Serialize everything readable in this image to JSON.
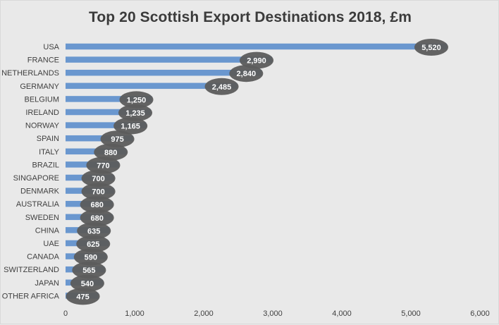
{
  "chart_data": {
    "type": "bar",
    "orientation": "horizontal",
    "title": "Top 20 Scottish Export Destinations 2018, £m",
    "categories": [
      "USA",
      "FRANCE",
      "NETHERLANDS",
      "GERMANY",
      "BELGIUM",
      "IRELAND",
      "NORWAY",
      "SPAIN",
      "ITALY",
      "BRAZIL",
      "SINGAPORE",
      "DENMARK",
      "AUSTRALIA",
      "SWEDEN",
      "CHINA",
      "UAE",
      "CANADA",
      "SWITZERLAND",
      "JAPAN",
      "OTHER AFRICA"
    ],
    "values": [
      5520,
      2990,
      2840,
      2485,
      1250,
      1235,
      1165,
      975,
      880,
      770,
      700,
      700,
      680,
      680,
      635,
      625,
      590,
      565,
      540,
      475
    ],
    "data_labels": [
      "5,520",
      "2,990",
      "2,840",
      "2,485",
      "1,250",
      "1,235",
      "1,165",
      "975",
      "880",
      "770",
      "700",
      "700",
      "680",
      "680",
      "635",
      "625",
      "590",
      "565",
      "540",
      "475"
    ],
    "xlim": [
      0,
      6000
    ],
    "x_ticks": [
      0,
      1000,
      2000,
      3000,
      4000,
      5000,
      6000
    ],
    "x_tick_labels": [
      "0",
      "1,000",
      "2,000",
      "3,000",
      "4,000",
      "5,000",
      "6,000"
    ],
    "xlabel": "",
    "ylabel": "",
    "grid": false,
    "legend": "none",
    "colors": {
      "bar": "#6a97cf",
      "label_ellipse": "#5c5c5c",
      "label_text": "#ffffff",
      "background": "#e9e9e9",
      "axis_text": "#404040",
      "title_text": "#3b3b3b"
    }
  }
}
